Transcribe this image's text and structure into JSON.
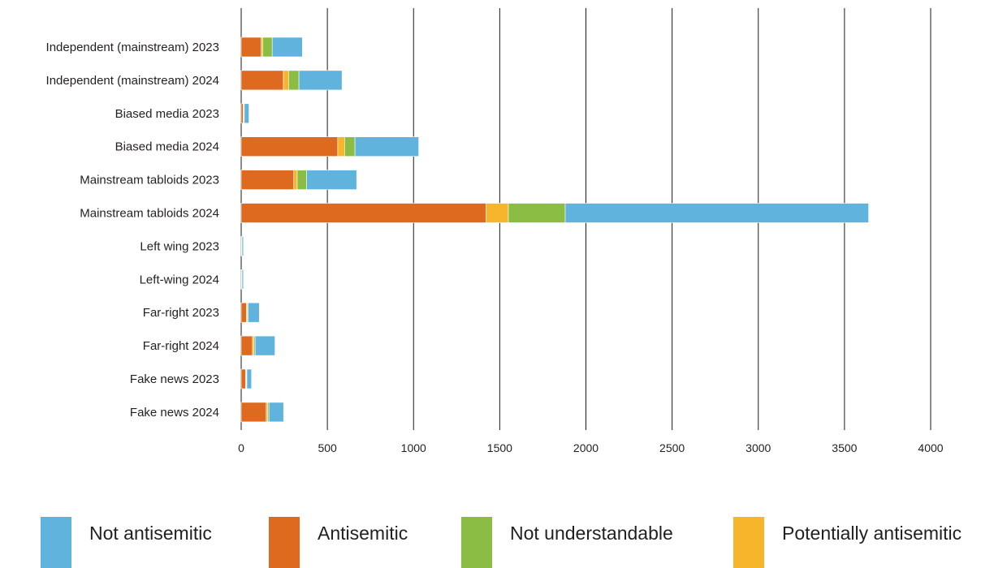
{
  "chart_data": {
    "type": "bar",
    "orientation": "horizontal",
    "stacked": true,
    "categories": [
      "Independent (mainstream) 2023",
      "Independent (mainstream) 2024",
      "Biased media 2023",
      "Biased media 2024",
      "Mainstream tabloids 2023",
      "Mainstream tabloids 2024",
      "Left wing 2023",
      "Left-wing 2024",
      "Far-right 2023",
      "Far-right 2024",
      "Fake news 2023",
      "Fake news 2024"
    ],
    "series": [
      {
        "name": "Antisemitic",
        "color": "#dd6a1f",
        "values": [
          115,
          245,
          12,
          560,
          305,
          1420,
          2,
          2,
          30,
          65,
          25,
          145
        ]
      },
      {
        "name": "Potentially antisemitic",
        "color": "#f7b52c",
        "values": [
          10,
          30,
          3,
          40,
          20,
          130,
          1,
          1,
          5,
          8,
          4,
          8
        ]
      },
      {
        "name": "Not understandable",
        "color": "#8bbd45",
        "values": [
          55,
          60,
          3,
          60,
          55,
          330,
          2,
          2,
          5,
          8,
          4,
          8
        ]
      },
      {
        "name": "Not antisemitic",
        "color": "#5fb3dc",
        "values": [
          175,
          250,
          27,
          370,
          290,
          1760,
          8,
          8,
          65,
          115,
          27,
          85
        ]
      }
    ],
    "legend_order": [
      "Not antisemitic",
      "Antisemitic",
      "Not understandable",
      "Potentially antisemitic"
    ],
    "xlim": [
      0,
      4000
    ],
    "xticks": [
      "0",
      "500",
      "1000",
      "1500",
      "2000",
      "2500",
      "3000",
      "3500",
      "4000"
    ],
    "xtick_values": [
      0,
      500,
      1000,
      1500,
      2000,
      2500,
      3000,
      3500,
      4000
    ],
    "grid": "vertical",
    "legend_position": "bottom",
    "title": "",
    "xlabel": "",
    "ylabel": ""
  }
}
